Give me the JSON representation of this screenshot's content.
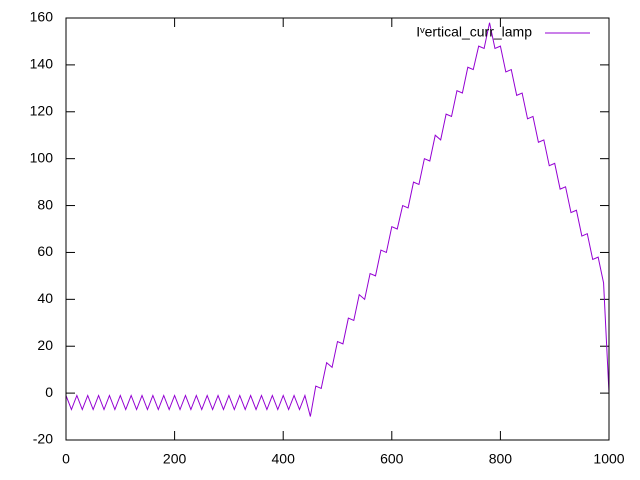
{
  "chart_data": {
    "type": "line",
    "x": [
      0,
      10,
      20,
      30,
      40,
      50,
      60,
      70,
      80,
      90,
      100,
      110,
      120,
      130,
      140,
      150,
      160,
      170,
      180,
      190,
      200,
      210,
      220,
      230,
      240,
      250,
      260,
      270,
      280,
      290,
      300,
      310,
      320,
      330,
      340,
      350,
      360,
      370,
      380,
      390,
      400,
      410,
      420,
      430,
      440,
      450,
      460,
      470,
      480,
      490,
      500,
      510,
      520,
      530,
      540,
      550,
      560,
      570,
      580,
      590,
      600,
      610,
      620,
      630,
      640,
      650,
      660,
      670,
      680,
      690,
      700,
      710,
      720,
      730,
      740,
      750,
      760,
      770,
      780,
      790,
      800,
      810,
      820,
      830,
      840,
      850,
      860,
      870,
      880,
      890,
      900,
      910,
      920,
      930,
      940,
      950,
      960,
      970,
      980,
      990,
      1000
    ],
    "series": [
      {
        "name": "Iᵛertical_curr_lamp",
        "color": "#9400d3",
        "values": [
          -1,
          -7,
          -1,
          -7,
          -1,
          -7,
          -1,
          -7,
          -1,
          -7,
          -1,
          -7,
          -1,
          -7,
          -1,
          -7,
          -1,
          -7,
          -1,
          -7,
          -1,
          -7,
          -1,
          -7,
          -1,
          -7,
          -1,
          -7,
          -1,
          -7,
          -1,
          -7,
          -1,
          -7,
          -1,
          -7,
          -1,
          -7,
          -1,
          -7,
          -1,
          -7,
          -1,
          -7,
          -1,
          -10,
          3,
          2,
          13,
          11,
          22,
          21,
          32,
          31,
          42,
          40,
          51,
          50,
          61,
          60,
          71,
          70,
          80,
          79,
          90,
          89,
          100,
          99,
          110,
          108,
          119,
          118,
          129,
          128,
          139,
          138,
          148,
          147,
          158,
          147,
          148,
          137,
          138,
          127,
          128,
          117,
          118,
          107,
          108,
          97,
          98,
          87,
          88,
          77,
          78,
          67,
          68,
          57,
          58,
          47,
          0
        ]
      }
    ],
    "xlim": [
      0,
      1000
    ],
    "xticks": [
      0,
      200,
      400,
      600,
      800,
      1000
    ],
    "ylim": [
      -20,
      160
    ],
    "yticks": [
      -20,
      0,
      20,
      40,
      60,
      80,
      100,
      120,
      140,
      160
    ],
    "legend": "top-right"
  }
}
